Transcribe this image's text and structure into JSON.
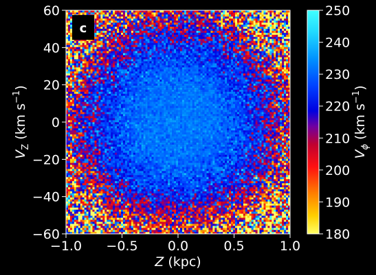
{
  "chart_data": {
    "type": "heatmap",
    "panel_label": "c",
    "x_axis": {
      "label_symbol": "Z",
      "label_unit": " (kpc)",
      "range": [
        -1.0,
        1.0
      ],
      "ticks": [
        -1.0,
        -0.5,
        0.0,
        0.5,
        1.0
      ],
      "tick_labels": [
        "−1.0",
        "−0.5",
        "0.0",
        "0.5",
        "1.0"
      ]
    },
    "y_axis": {
      "label_symbol": "V",
      "label_subscript": "Z",
      "label_unit_pre": " (km s",
      "label_unit_exp": "−1",
      "label_unit_post": ")",
      "range": [
        -60,
        60
      ],
      "ticks": [
        -60,
        -40,
        -20,
        0,
        20,
        40,
        60
      ],
      "tick_labels": [
        "−60",
        "−40",
        "−20",
        "0",
        "20",
        "40",
        "60"
      ]
    },
    "colorbar": {
      "label_symbol": "V",
      "label_subscript": "ϕ",
      "label_unit_pre": " (km s",
      "label_unit_exp": "−1",
      "label_unit_post": ")",
      "range": [
        180,
        250
      ],
      "ticks": [
        180,
        190,
        200,
        210,
        220,
        230,
        240,
        250
      ],
      "colormap": "jet-like: yellow(180) → orange → red(~205) → dark blue/purple(~215) → blue(~225) → cyan(250)"
    },
    "grid": false,
    "description_of_field": {
      "center_value_approx": 232,
      "outer_edge_value_approx": 210,
      "bottom_edge_value_approx": 205,
      "bins_x": 110,
      "bins_y": 110
    }
  }
}
